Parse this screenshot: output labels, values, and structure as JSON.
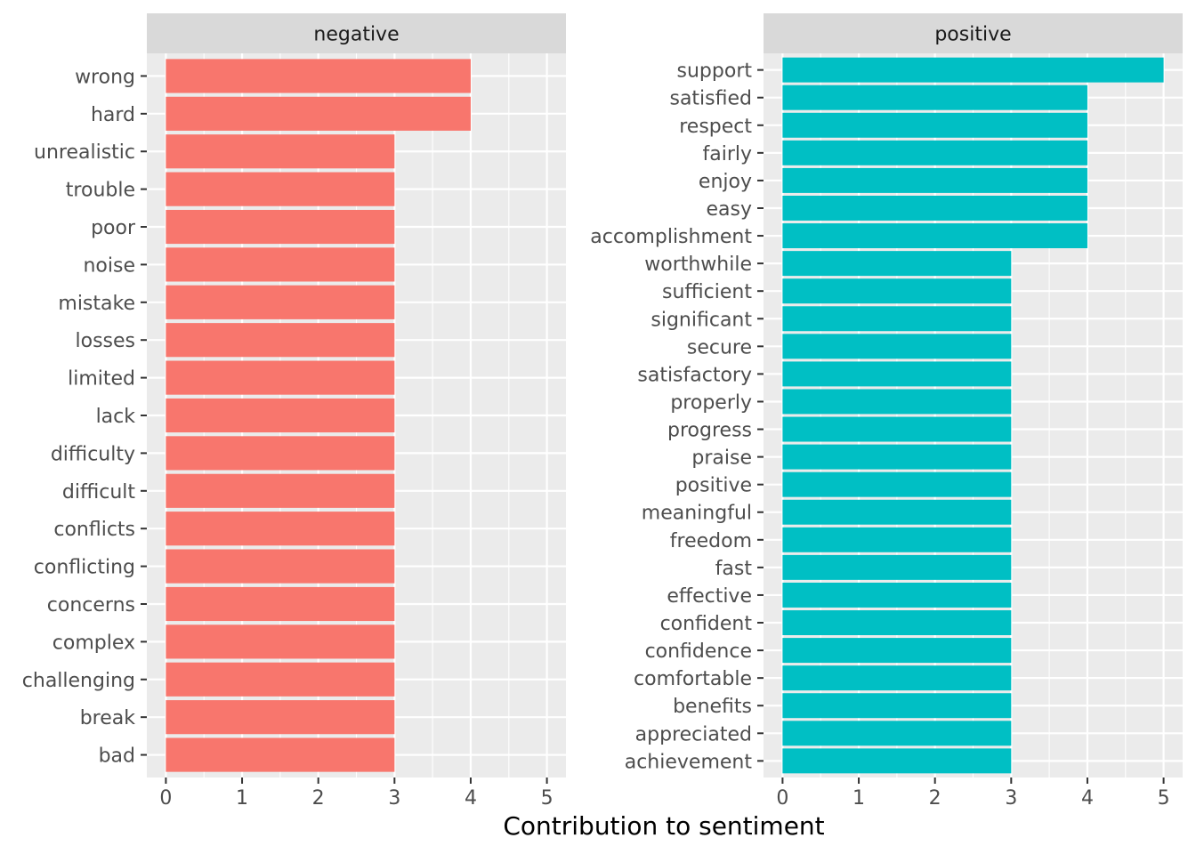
{
  "chart_data": {
    "type": "bar",
    "orientation": "horizontal",
    "xlabel": "Contribution to sentiment",
    "ylabel": "",
    "grid": true,
    "xticks": [
      0,
      1,
      2,
      3,
      4,
      5
    ],
    "panels": [
      {
        "name": "negative",
        "color": "#F8766D",
        "xlim": [
          -0.25,
          5.25
        ],
        "categories": [
          "wrong",
          "hard",
          "unrealistic",
          "trouble",
          "poor",
          "noise",
          "mistake",
          "losses",
          "limited",
          "lack",
          "difficulty",
          "difficult",
          "conflicts",
          "conflicting",
          "concerns",
          "complex",
          "challenging",
          "break",
          "bad"
        ],
        "values": [
          4,
          4,
          3,
          3,
          3,
          3,
          3,
          3,
          3,
          3,
          3,
          3,
          3,
          3,
          3,
          3,
          3,
          3,
          3
        ]
      },
      {
        "name": "positive",
        "color": "#00BFC4",
        "xlim": [
          -0.25,
          5.25
        ],
        "categories": [
          "support",
          "satisfied",
          "respect",
          "fairly",
          "enjoy",
          "easy",
          "accomplishment",
          "worthwhile",
          "sufficient",
          "significant",
          "secure",
          "satisfactory",
          "properly",
          "progress",
          "praise",
          "positive",
          "meaningful",
          "freedom",
          "fast",
          "effective",
          "confident",
          "confidence",
          "comfortable",
          "benefits",
          "appreciated",
          "achievement"
        ],
        "values": [
          5,
          4,
          4,
          4,
          4,
          4,
          4,
          3,
          3,
          3,
          3,
          3,
          3,
          3,
          3,
          3,
          3,
          3,
          3,
          3,
          3,
          3,
          3,
          3,
          3,
          3
        ]
      }
    ]
  },
  "colors": {
    "panel_background": "#EBEBEB",
    "strip_background": "#D9D9D9",
    "grid": "#FFFFFF"
  }
}
